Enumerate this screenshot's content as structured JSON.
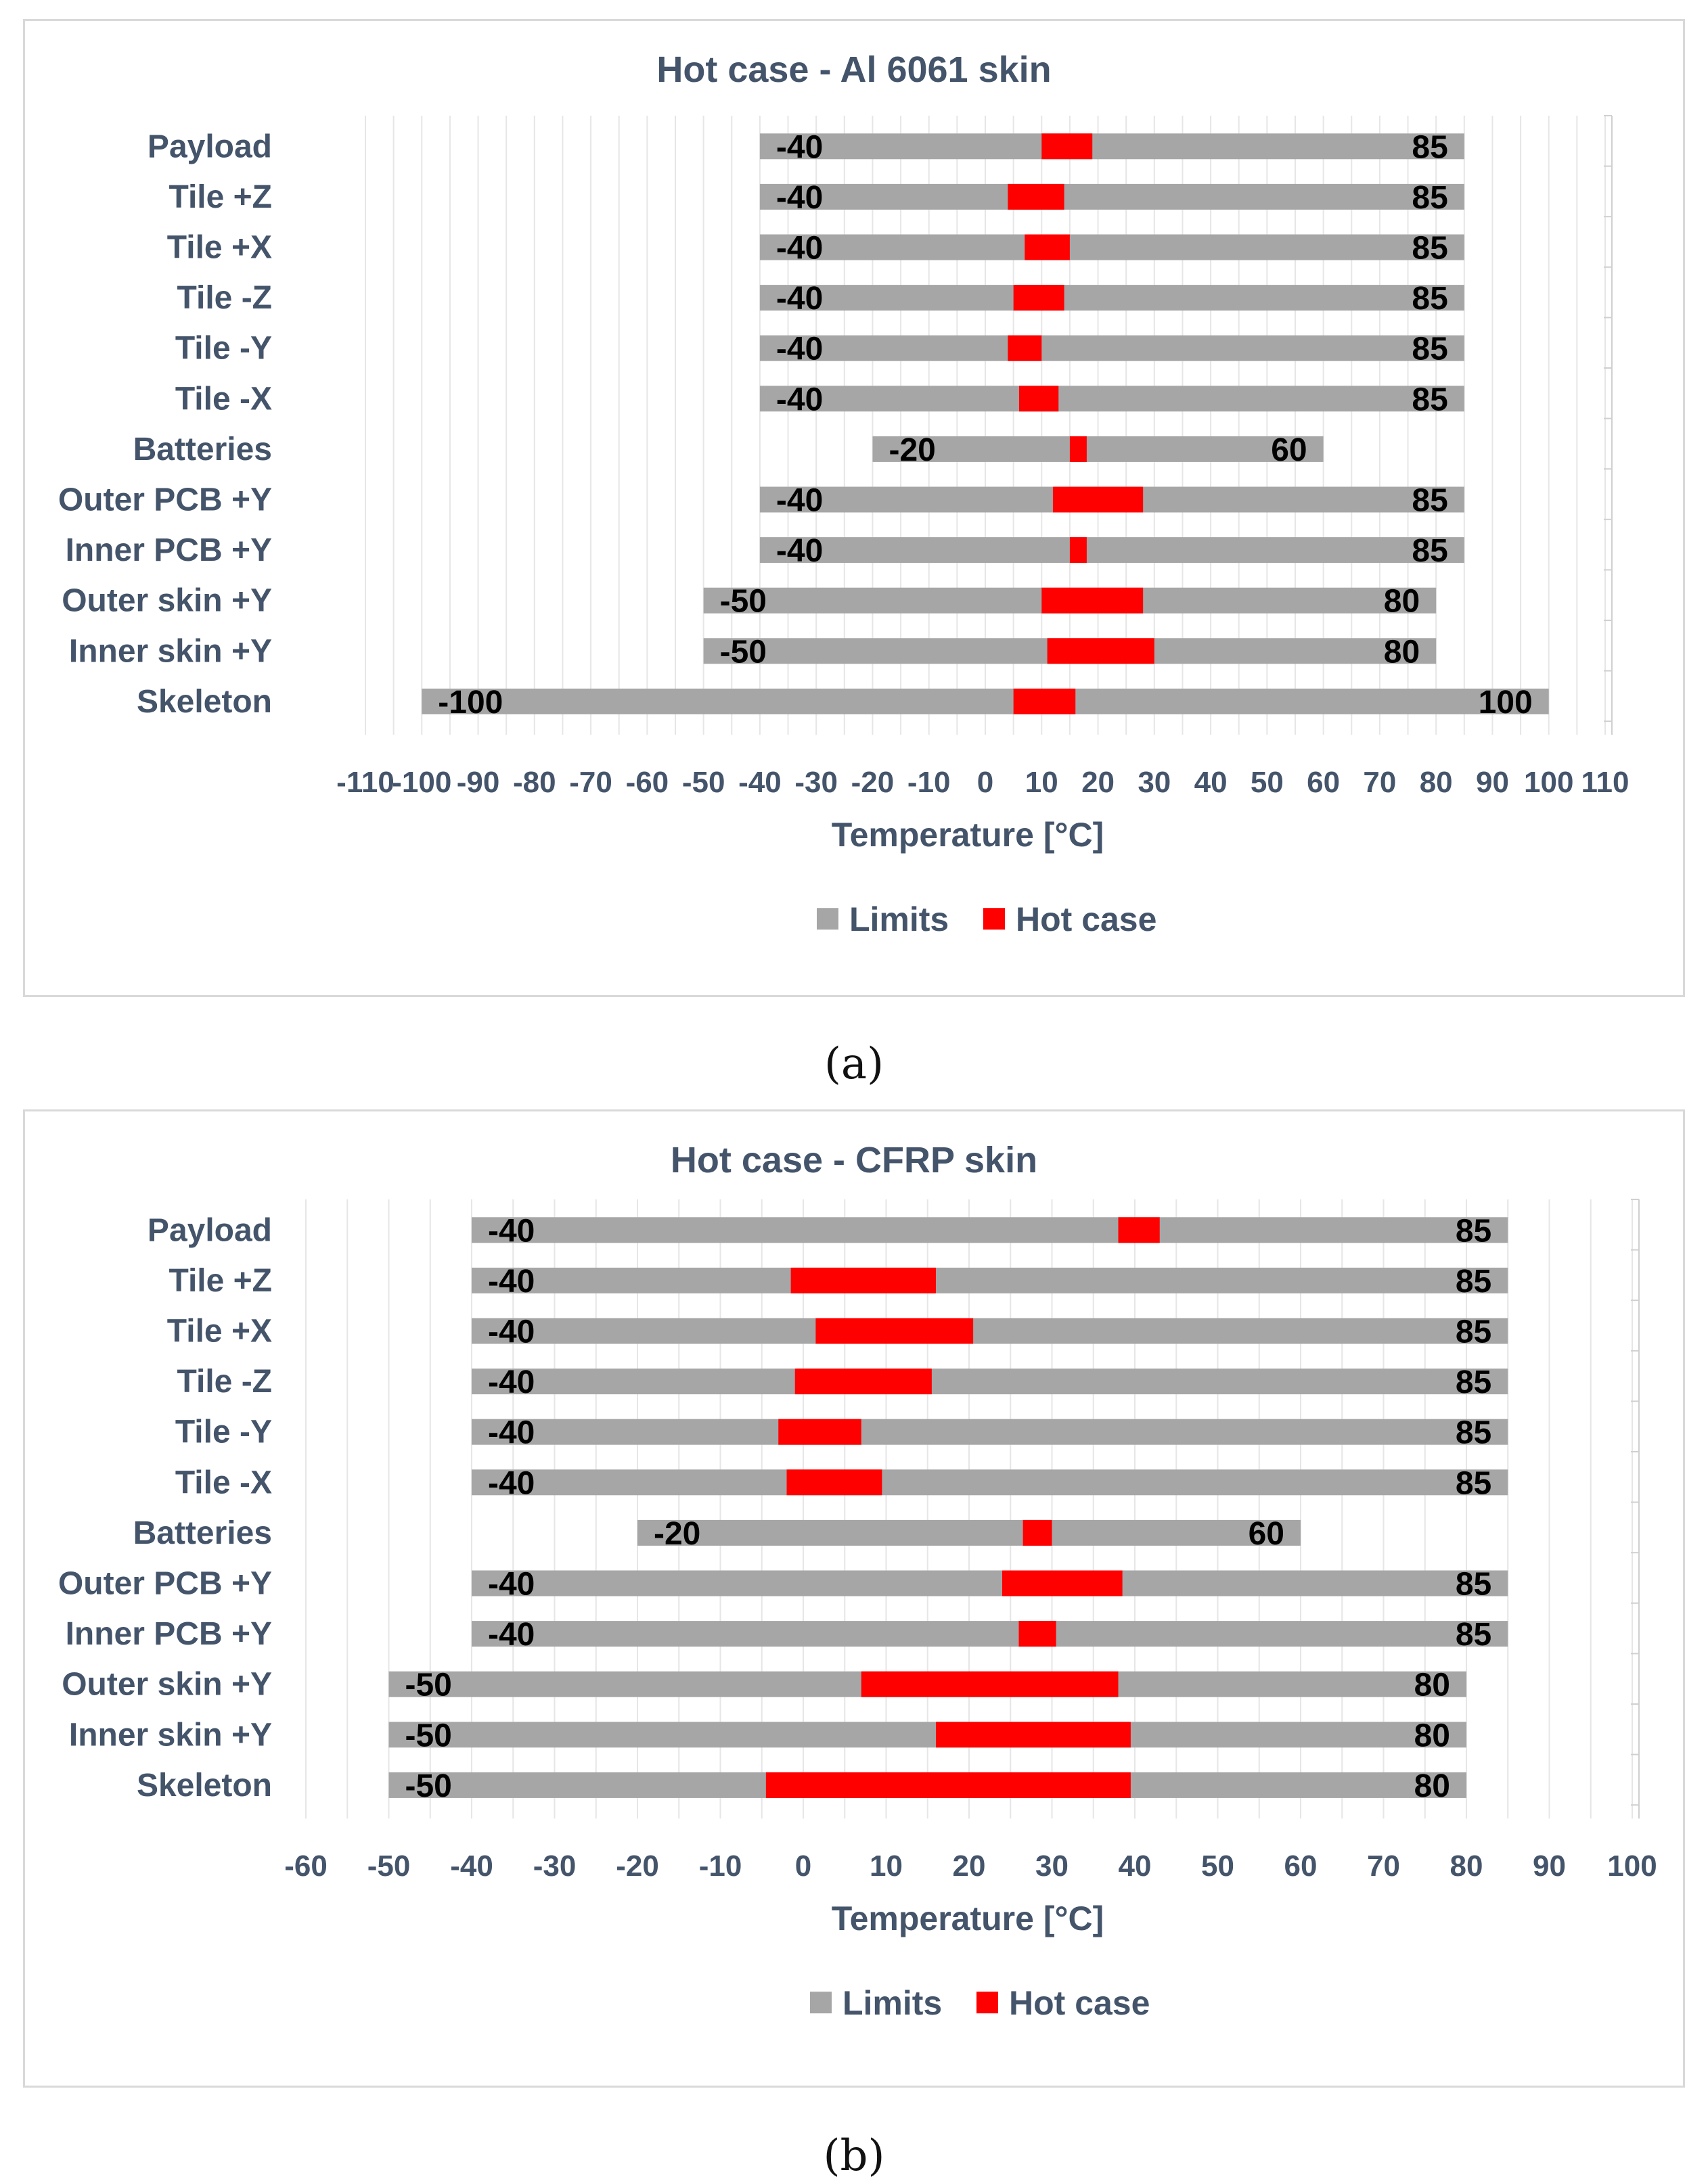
{
  "colors": {
    "limits": "#a6a6a6",
    "hot": "#ff0000",
    "text": "#44546a",
    "grid": "#e6e6e6"
  },
  "captions": [
    "(a)",
    "(b)"
  ],
  "chart_data": [
    {
      "type": "bar",
      "orientation": "horizontal",
      "title": "Hot case - Al 6061 skin",
      "xlabel": "Temperature [°C]",
      "ylabel": "",
      "xlim": [
        -110,
        110
      ],
      "ticks": [
        -110,
        -100,
        -90,
        -80,
        -70,
        -60,
        -50,
        -40,
        -30,
        -20,
        -10,
        0,
        10,
        20,
        30,
        40,
        50,
        60,
        70,
        80,
        90,
        100,
        110
      ],
      "legend": [
        {
          "name": "Limits",
          "color": "#a6a6a6"
        },
        {
          "name": "Hot case",
          "color": "#ff0000"
        }
      ],
      "legend_position": "bottom",
      "categories": [
        "Payload",
        "Tile +Z",
        "Tile +X",
        "Tile -Z",
        "Tile -Y",
        "Tile -X",
        "Batteries",
        "Outer PCB +Y",
        "Inner PCB +Y",
        "Outer skin +Y",
        "Inner skin +Y",
        "Skeleton"
      ],
      "series": [
        {
          "name": "Limits",
          "min": [
            -40,
            -40,
            -40,
            -40,
            -40,
            -40,
            -20,
            -40,
            -40,
            -50,
            -50,
            -100
          ],
          "max": [
            85,
            85,
            85,
            85,
            85,
            85,
            60,
            85,
            85,
            80,
            80,
            100
          ]
        },
        {
          "name": "Hot case",
          "min": [
            10,
            4,
            7,
            5,
            4,
            6,
            15,
            12,
            15,
            10,
            11,
            5
          ],
          "max": [
            19,
            14,
            15,
            14,
            10,
            13,
            18,
            28,
            18,
            28,
            30,
            16
          ]
        }
      ],
      "min_labels": [
        "-40",
        "-40",
        "-40",
        "-40",
        "-40",
        "-40",
        "-20",
        "-40",
        "-40",
        "-50",
        "-50",
        "-100"
      ],
      "max_labels": [
        "85",
        "85",
        "85",
        "85",
        "85",
        "85",
        "60",
        "85",
        "85",
        "80",
        "80",
        "100"
      ]
    },
    {
      "type": "bar",
      "orientation": "horizontal",
      "title": "Hot case - CFRP skin",
      "xlabel": "Temperature [°C]",
      "ylabel": "",
      "xlim": [
        -60,
        100
      ],
      "ticks": [
        -60,
        -50,
        -40,
        -30,
        -20,
        -10,
        0,
        10,
        20,
        30,
        40,
        50,
        60,
        70,
        80,
        90,
        100
      ],
      "legend": [
        {
          "name": "Limits",
          "color": "#a6a6a6"
        },
        {
          "name": "Hot case",
          "color": "#ff0000"
        }
      ],
      "legend_position": "bottom",
      "categories": [
        "Payload",
        "Tile +Z",
        "Tile +X",
        "Tile -Z",
        "Tile -Y",
        "Tile -X",
        "Batteries",
        "Outer PCB +Y",
        "Inner PCB +Y",
        "Outer skin +Y",
        "Inner skin +Y",
        "Skeleton"
      ],
      "series": [
        {
          "name": "Limits",
          "min": [
            -40,
            -40,
            -40,
            -40,
            -40,
            -40,
            -20,
            -40,
            -40,
            -50,
            -50,
            -50
          ],
          "max": [
            85,
            85,
            85,
            85,
            85,
            85,
            60,
            85,
            85,
            80,
            80,
            80
          ]
        },
        {
          "name": "Hot case",
          "min": [
            38,
            -1.5,
            1.5,
            -1,
            -3,
            -2,
            26.5,
            24,
            26,
            7,
            16,
            -4.5
          ],
          "max": [
            43,
            16,
            20.5,
            15.5,
            7,
            9.5,
            30,
            38.5,
            30.5,
            38,
            39.5,
            39.5
          ]
        }
      ],
      "min_labels": [
        "-40",
        "-40",
        "-40",
        "-40",
        "-40",
        "-40",
        "-20",
        "-40",
        "-40",
        "-50",
        "-50",
        "-50"
      ],
      "max_labels": [
        "85",
        "85",
        "85",
        "85",
        "85",
        "85",
        "60",
        "85",
        "85",
        "80",
        "80",
        "80"
      ]
    }
  ]
}
